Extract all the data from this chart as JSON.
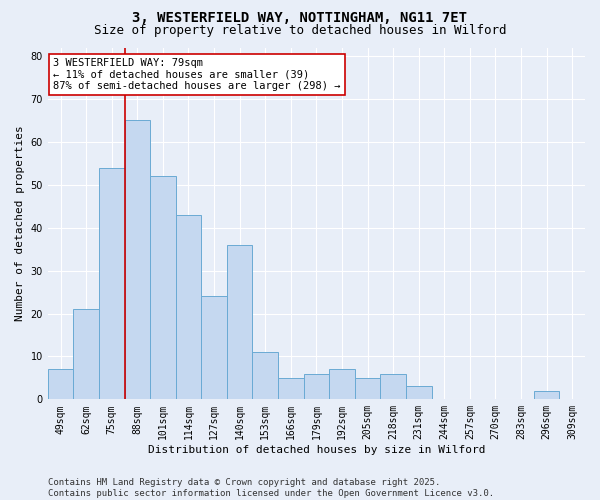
{
  "title_line1": "3, WESTERFIELD WAY, NOTTINGHAM, NG11 7ET",
  "title_line2": "Size of property relative to detached houses in Wilford",
  "xlabel": "Distribution of detached houses by size in Wilford",
  "ylabel": "Number of detached properties",
  "categories": [
    "49sqm",
    "62sqm",
    "75sqm",
    "88sqm",
    "101sqm",
    "114sqm",
    "127sqm",
    "140sqm",
    "153sqm",
    "166sqm",
    "179sqm",
    "192sqm",
    "205sqm",
    "218sqm",
    "231sqm",
    "244sqm",
    "257sqm",
    "270sqm",
    "283sqm",
    "296sqm",
    "309sqm"
  ],
  "values": [
    7,
    21,
    54,
    65,
    52,
    43,
    24,
    36,
    11,
    5,
    6,
    7,
    5,
    6,
    3,
    0,
    0,
    0,
    0,
    2,
    0
  ],
  "bar_color": "#c5d8f0",
  "bar_edge_color": "#6aaad4",
  "highlight_label_line1": "3 WESTERFIELD WAY: 79sqm",
  "highlight_label_line2": "← 11% of detached houses are smaller (39)",
  "highlight_label_line3": "87% of semi-detached houses are larger (298) →",
  "vline_color": "#cc0000",
  "vline_x": 2.5,
  "ylim": [
    0,
    82
  ],
  "yticks": [
    0,
    10,
    20,
    30,
    40,
    50,
    60,
    70,
    80
  ],
  "bg_color": "#e8eef8",
  "grid_color": "#ffffff",
  "annotation_box_facecolor": "#ffffff",
  "annotation_box_edgecolor": "#cc0000",
  "footer_line1": "Contains HM Land Registry data © Crown copyright and database right 2025.",
  "footer_line2": "Contains public sector information licensed under the Open Government Licence v3.0.",
  "title_fontsize": 10,
  "subtitle_fontsize": 9,
  "axis_label_fontsize": 8,
  "tick_fontsize": 7,
  "annotation_fontsize": 7.5,
  "footer_fontsize": 6.5
}
